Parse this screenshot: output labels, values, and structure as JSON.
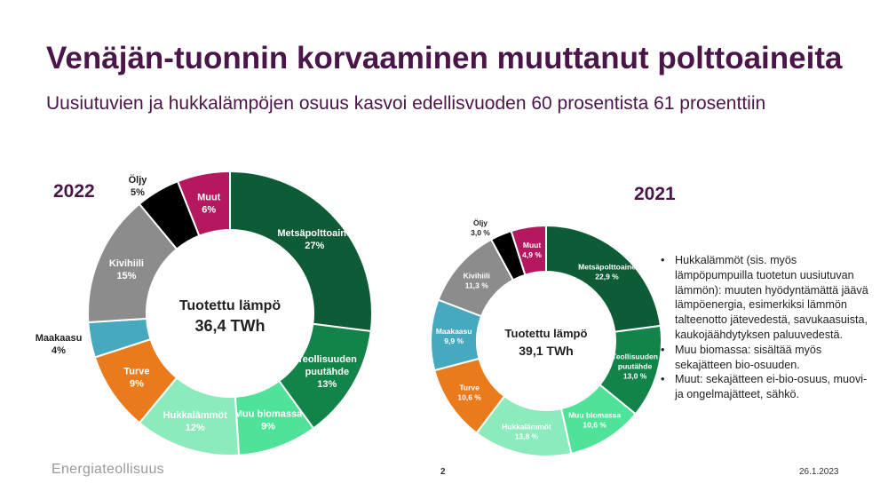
{
  "title": "Venäjän-tuonnin korvaaminen muuttanut polttoaineita",
  "subtitle": "Uusiutuvien ja hukkalämpöjen osuus kasvoi edellisvuoden 60 prosentista 61 prosenttiin",
  "chart_data": [
    {
      "type": "pie",
      "year_label": "2022",
      "center_label": "Tuotettu lämpö",
      "center_value": "36,4 TWh",
      "slices": [
        {
          "name": "Metsäpolttoaine",
          "label": "27%",
          "value": 27,
          "color": "#0e5c35"
        },
        {
          "name": "Teollisuuden puutähde",
          "label": "13%",
          "value": 13,
          "color": "#12844a"
        },
        {
          "name": "Muu biomassa",
          "label": "9%",
          "value": 9,
          "color": "#4fe39a"
        },
        {
          "name": "Hukkalämmöt",
          "label": "12%",
          "value": 12,
          "color": "#8cebbd"
        },
        {
          "name": "Turve",
          "label": "9%",
          "value": 9,
          "color": "#ea7b1c"
        },
        {
          "name": "Maakaasu",
          "label": "4%",
          "value": 4,
          "color": "#46a9bd"
        },
        {
          "name": "Kivihiili",
          "label": "15%",
          "value": 15,
          "color": "#8c8c8c"
        },
        {
          "name": "Öljy",
          "label": "5%",
          "value": 5,
          "color": "#000000"
        },
        {
          "name": "Muut",
          "label": "6%",
          "value": 6,
          "color": "#b5185e"
        }
      ]
    },
    {
      "type": "pie",
      "year_label": "2021",
      "center_label": "Tuotettu lämpö",
      "center_value": "39,1 TWh",
      "slices": [
        {
          "name": "Metsäpolttoaine",
          "label": "22,9 %",
          "value": 22.9,
          "color": "#0e5c35"
        },
        {
          "name": "Teollisuuden puutähde",
          "label": "13,0 %",
          "value": 13.0,
          "color": "#12844a"
        },
        {
          "name": "Muu biomassa",
          "label": "10,6 %",
          "value": 10.6,
          "color": "#4fe39a"
        },
        {
          "name": "Hukkalämmöt",
          "label": "13,8 %",
          "value": 13.8,
          "color": "#8cebbd"
        },
        {
          "name": "Turve",
          "label": "10,6 %",
          "value": 10.6,
          "color": "#ea7b1c"
        },
        {
          "name": "Maakaasu",
          "label": "9,9 %",
          "value": 9.9,
          "color": "#46a9bd"
        },
        {
          "name": "Kivihiili",
          "label": "11,3 %",
          "value": 11.3,
          "color": "#8c8c8c"
        },
        {
          "name": "Öljy",
          "label": "3,0 %",
          "value": 3.0,
          "color": "#000000"
        },
        {
          "name": "Muut",
          "label": "4,9 %",
          "value": 4.9,
          "color": "#b5185e"
        }
      ]
    }
  ],
  "notes": [
    "Hukkalämmöt (sis. myös lämpöpumpuilla tuotetun uusiutuvan lämmön): muuten hyödyntämättä jäävä lämpöenergia, esimerkiksi lämmön talteenotto jätevedestä, savukaasuista, kaukojäähdytyksen paluuvedestä.",
    "Muu biomassa:  sisältää myös sekajätteen bio-osuuden.",
    "Muut: sekajätteen ei-bio-osuus, muovi- ja ongelmajätteet, sähkö."
  ],
  "footer": {
    "logo_text": "Energiateollisuus",
    "page_number": "2",
    "date": "26.1.2023"
  }
}
